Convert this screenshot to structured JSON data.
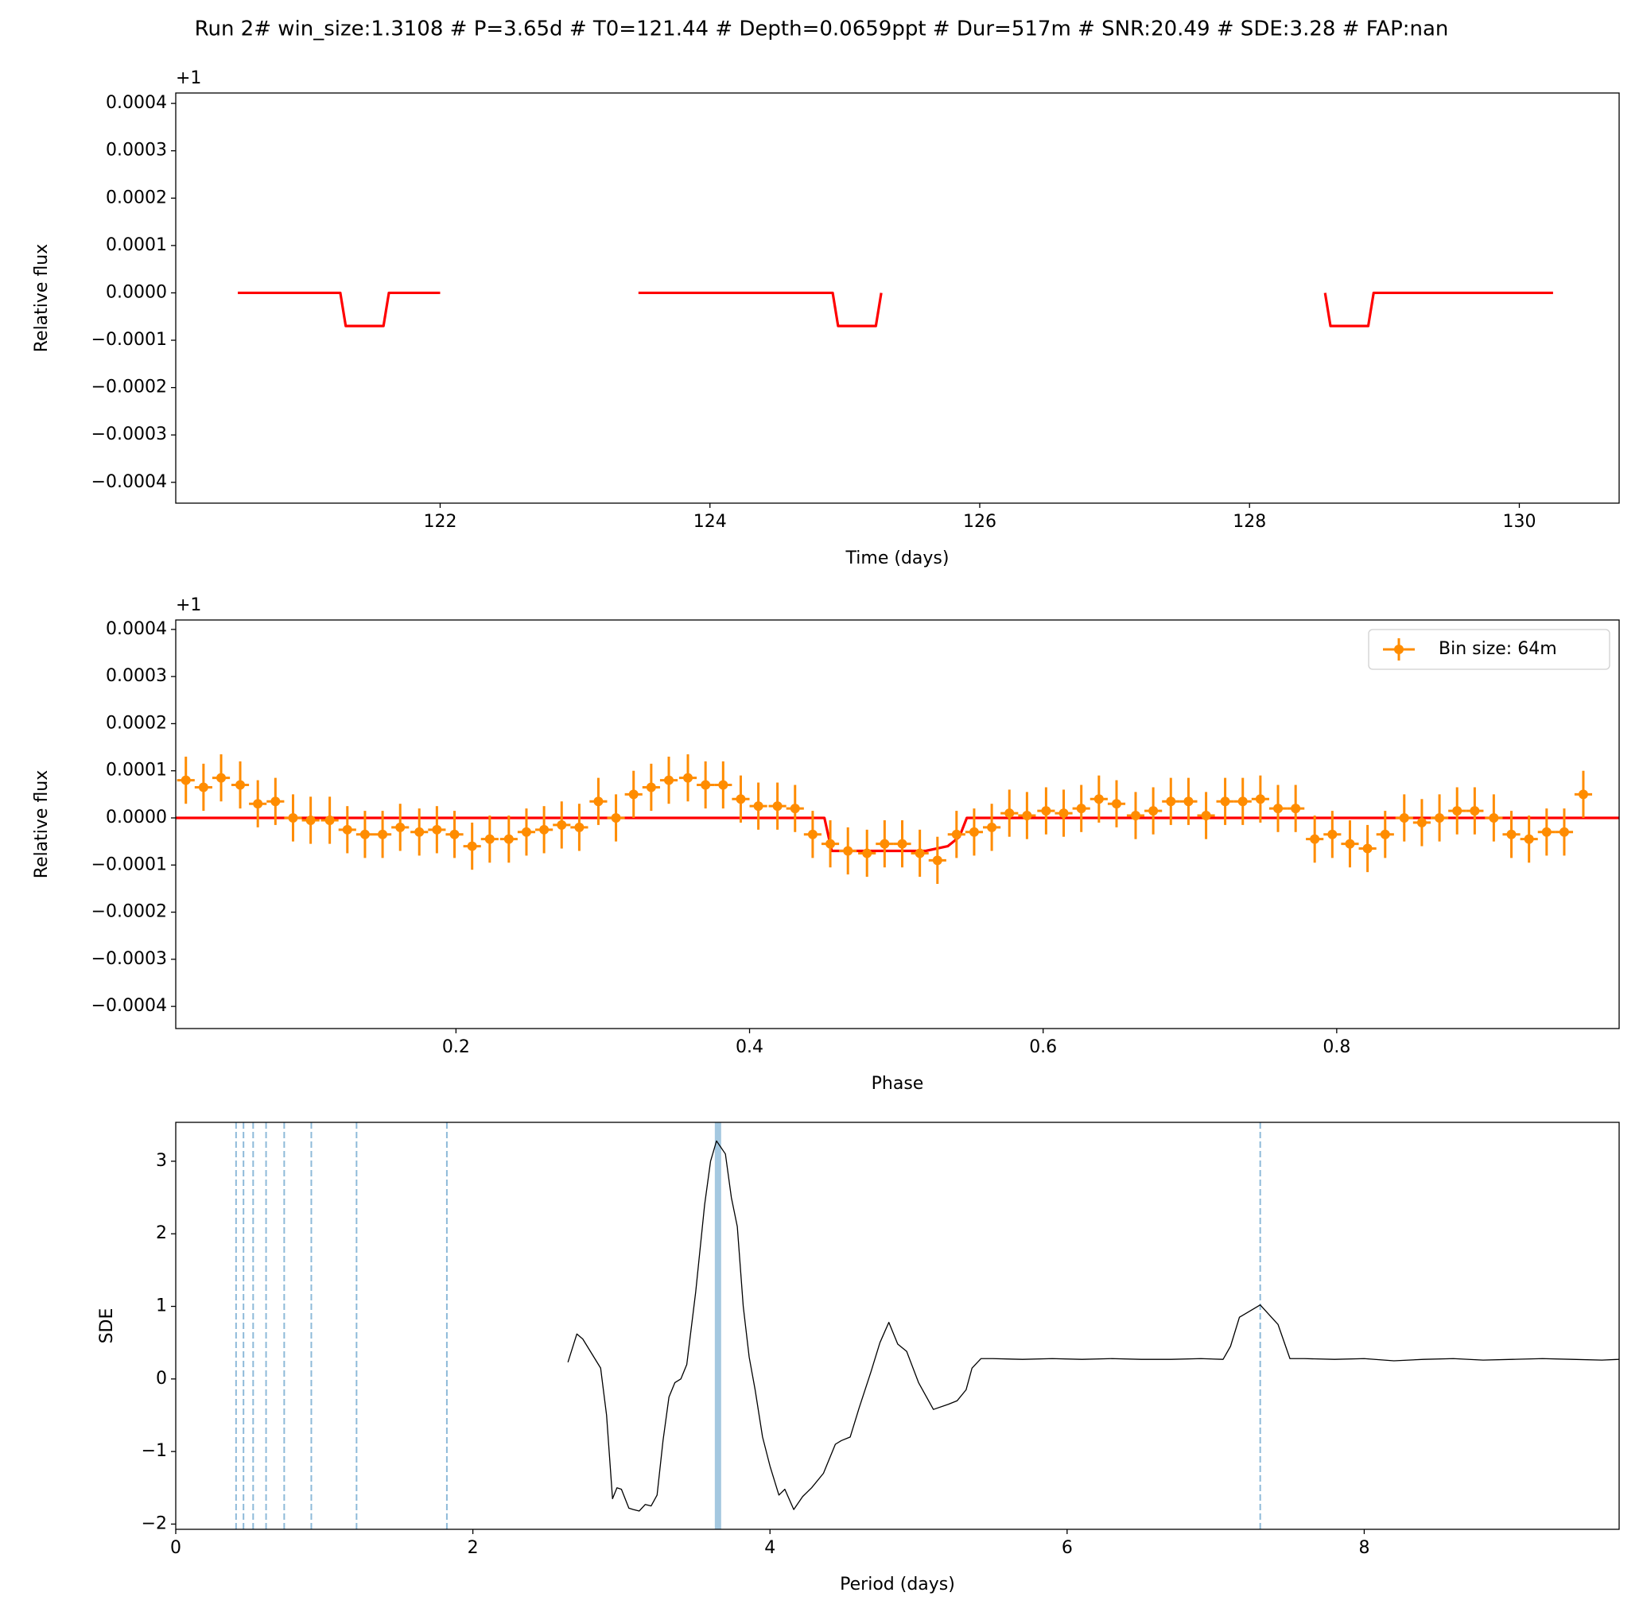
{
  "title": "Run 2# win_size:1.3108 # P=3.65d # T0=121.44 # Depth=0.0659ppt # Dur=517m # SNR:20.49 # SDE:3.28 # FAP:nan",
  "chart_data": [
    {
      "type": "line",
      "xlabel": "Time (days)",
      "ylabel": "Relative flux",
      "offset": "+1",
      "xlim": [
        120.04,
        130.74
      ],
      "ylim": [
        -0.000444,
        0.000422
      ],
      "xticks": [
        122,
        124,
        126,
        128,
        130
      ],
      "yticks": [
        {
          "value": -0.0004,
          "label": "−0.0004"
        },
        {
          "value": -0.0003,
          "label": "−0.0003"
        },
        {
          "value": -0.0002,
          "label": "−0.0002"
        },
        {
          "value": -0.0001,
          "label": "−0.0001"
        },
        {
          "value": 0,
          "label": "0.0000"
        },
        {
          "value": 0.0001,
          "label": "0.0001"
        },
        {
          "value": 0.0002,
          "label": "0.0002"
        },
        {
          "value": 0.0003,
          "label": "0.0003"
        },
        {
          "value": 0.0004,
          "label": "0.0004"
        }
      ],
      "series": [
        {
          "color": "#ff0000",
          "x": [
            120.5,
            121.26,
            121.3,
            121.58,
            121.62,
            122.0,
            null,
            123.47,
            124.91,
            124.95,
            125.23,
            125.27,
            null,
            128.56,
            128.6,
            128.88,
            128.92,
            130.25
          ],
          "values": [
            0,
            0,
            -7e-05,
            -7e-05,
            0,
            0,
            null,
            0,
            0,
            -7e-05,
            -7e-05,
            0,
            null,
            0,
            -7e-05,
            -7e-05,
            0,
            0
          ]
        }
      ]
    },
    {
      "type": "errorbar",
      "xlabel": "Phase",
      "ylabel": "Relative flux",
      "offset": "+1",
      "xlim": [
        0.0091,
        0.9924
      ],
      "ylim": [
        -0.000447,
        0.00042
      ],
      "xticks": [
        0.2,
        0.4,
        0.6,
        0.8
      ],
      "yticks": [
        {
          "value": -0.0004,
          "label": "−0.0004"
        },
        {
          "value": -0.0003,
          "label": "−0.0003"
        },
        {
          "value": -0.0002,
          "label": "−0.0002"
        },
        {
          "value": -0.0001,
          "label": "−0.0001"
        },
        {
          "value": 0,
          "label": "0.0000"
        },
        {
          "value": 0.0001,
          "label": "0.0001"
        },
        {
          "value": 0.0002,
          "label": "0.0002"
        },
        {
          "value": 0.0003,
          "label": "0.0003"
        },
        {
          "value": 0.0004,
          "label": "0.0004"
        }
      ],
      "legend": "upper right",
      "series": [
        {
          "color": "#ff0000",
          "x": [
            0.0091,
            0.451,
            0.456,
            0.52,
            0.535,
            0.543,
            0.548,
            0.9924
          ],
          "values": [
            0,
            0,
            -7e-05,
            -7e-05,
            -6e-05,
            -4e-05,
            0,
            0
          ]
        },
        {
          "name": "Bin size: 64m",
          "color": "#ff8c00",
          "y_err": 5e-05,
          "x_err": 0.006,
          "x": [
            0.016,
            0.028,
            0.04,
            0.053,
            0.065,
            0.077,
            0.089,
            0.101,
            0.114,
            0.126,
            0.138,
            0.15,
            0.162,
            0.175,
            0.187,
            0.199,
            0.211,
            0.223,
            0.236,
            0.248,
            0.26,
            0.272,
            0.284,
            0.297,
            0.309,
            0.321,
            0.333,
            0.345,
            0.358,
            0.37,
            0.382,
            0.394,
            0.406,
            0.419,
            0.431,
            0.443,
            0.455,
            0.467,
            0.48,
            0.492,
            0.504,
            0.516,
            0.528,
            0.541,
            0.553,
            0.565,
            0.577,
            0.589,
            0.602,
            0.614,
            0.626,
            0.638,
            0.65,
            0.663,
            0.675,
            0.687,
            0.699,
            0.711,
            0.724,
            0.736,
            0.748,
            0.76,
            0.772,
            0.785,
            0.797,
            0.809,
            0.821,
            0.833,
            0.846,
            0.858,
            0.87,
            0.882,
            0.894,
            0.907,
            0.919,
            0.931,
            0.943,
            0.955,
            0.968
          ],
          "values": [
            8e-05,
            6.5e-05,
            8.5e-05,
            7e-05,
            3e-05,
            3.5e-05,
            0,
            -5e-06,
            -5e-06,
            -2.5e-05,
            -3.5e-05,
            -3.5e-05,
            -2e-05,
            -3e-05,
            -2.5e-05,
            -3.5e-05,
            -6e-05,
            -4.5e-05,
            -4.5e-05,
            -3e-05,
            -2.5e-05,
            -1.5e-05,
            -2e-05,
            3.5e-05,
            0,
            5e-05,
            6.5e-05,
            8e-05,
            8.5e-05,
            7e-05,
            7e-05,
            4e-05,
            2.5e-05,
            2.5e-05,
            2e-05,
            -3.5e-05,
            -5.5e-05,
            -7e-05,
            -7.5e-05,
            -5.5e-05,
            -5.5e-05,
            -7.5e-05,
            -9e-05,
            -3.5e-05,
            -3e-05,
            -2e-05,
            1e-05,
            5e-06,
            1.5e-05,
            1e-05,
            2e-05,
            4e-05,
            3e-05,
            5e-06,
            1.5e-05,
            3.5e-05,
            3.5e-05,
            5e-06,
            3.5e-05,
            3.5e-05,
            4e-05,
            2e-05,
            2e-05,
            -4.5e-05,
            -3.5e-05,
            -5.5e-05,
            -6.5e-05,
            -3.5e-05,
            0,
            -1e-05,
            0,
            1.5e-05,
            1.5e-05,
            0,
            -3.5e-05,
            -4.5e-05,
            -3e-05,
            -3e-05,
            5e-05
          ]
        }
      ]
    },
    {
      "type": "line",
      "xlabel": "Period (days)",
      "ylabel": "SDE",
      "xlim": [
        0,
        9.716
      ],
      "ylim": [
        -2.072,
        3.536
      ],
      "xticks": [
        0,
        2,
        4,
        6,
        8
      ],
      "yticks": [
        {
          "value": -2,
          "label": "−2"
        },
        {
          "value": -1,
          "label": "−1"
        },
        0,
        1,
        2,
        3
      ],
      "vlines": [
        0.406,
        0.456,
        0.521,
        0.608,
        0.73,
        0.9125,
        1.217,
        1.825,
        7.3
      ],
      "period": 3.65,
      "vline_color": "#1f77b4",
      "series": [
        {
          "color": "#000000",
          "x": [
            2.64,
            2.7,
            2.74,
            2.8,
            2.86,
            2.9,
            2.94,
            2.97,
            3.0,
            3.05,
            3.08,
            3.12,
            3.16,
            3.2,
            3.24,
            3.28,
            3.32,
            3.36,
            3.4,
            3.44,
            3.5,
            3.56,
            3.6,
            3.64,
            3.7,
            3.74,
            3.78,
            3.82,
            3.86,
            3.9,
            3.95,
            4.0,
            4.06,
            4.1,
            4.16,
            4.22,
            4.28,
            4.36,
            4.44,
            4.48,
            4.54,
            4.6,
            4.68,
            4.74,
            4.8,
            4.86,
            4.92,
            5.0,
            5.1,
            5.2,
            5.26,
            5.32,
            5.36,
            5.42,
            5.5,
            5.7,
            5.9,
            6.1,
            6.3,
            6.5,
            6.7,
            6.9,
            7.05,
            7.1,
            7.16,
            7.3,
            7.42,
            7.5,
            7.6,
            7.8,
            8.0,
            8.2,
            8.4,
            8.6,
            8.8,
            9.0,
            9.2,
            9.4,
            9.6,
            9.716
          ],
          "values": [
            0.23,
            0.62,
            0.55,
            0.35,
            0.15,
            -0.5,
            -1.65,
            -1.5,
            -1.52,
            -1.78,
            -1.8,
            -1.82,
            -1.73,
            -1.75,
            -1.6,
            -0.85,
            -0.25,
            -0.05,
            0,
            0.2,
            1.2,
            2.4,
            3.0,
            3.28,
            3.1,
            2.5,
            2.1,
            1.0,
            0.3,
            -0.15,
            -0.8,
            -1.2,
            -1.6,
            -1.52,
            -1.8,
            -1.62,
            -1.5,
            -1.3,
            -0.9,
            -0.85,
            -0.8,
            -0.4,
            0.1,
            0.5,
            0.78,
            0.48,
            0.38,
            -0.05,
            -0.42,
            -0.35,
            -0.3,
            -0.15,
            0.15,
            0.28,
            0.28,
            0.27,
            0.28,
            0.27,
            0.28,
            0.27,
            0.27,
            0.28,
            0.27,
            0.45,
            0.85,
            1.02,
            0.75,
            0.28,
            0.28,
            0.27,
            0.28,
            0.25,
            0.27,
            0.28,
            0.26,
            0.27,
            0.28,
            0.27,
            0.26,
            0.27
          ]
        }
      ]
    }
  ]
}
